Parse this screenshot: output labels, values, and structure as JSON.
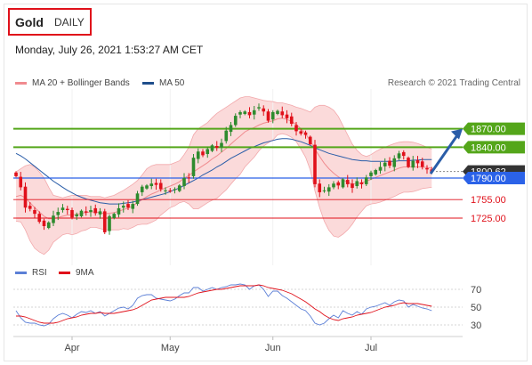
{
  "header": {
    "symbol": "Gold",
    "period": "DAILY",
    "timestamp": "Monday, July 26, 2021 1:53:27 AM CET"
  },
  "legend": {
    "top": [
      {
        "label": "MA 20 + Bollinger Bands",
        "color": "#f08b8f"
      },
      {
        "label": "MA 50",
        "color": "#1f4e8c"
      }
    ],
    "bottom": [
      {
        "label": "RSI",
        "color": "#5b7fd6"
      },
      {
        "label": "9MA",
        "color": "#e0101a"
      }
    ]
  },
  "credit": "Research © 2021 Trading Central",
  "colors": {
    "up": "#2e8b2e",
    "down": "#e0101a",
    "green_level": "#54a61a",
    "blue_level": "#2b62e8",
    "red_level": "#e0101a",
    "price_tag": "#333333",
    "arrow": "#2a5da8",
    "band_fill": "#fbdada"
  },
  "chart_data": [
    {
      "type": "candlestick",
      "x_tick_labels": [
        "Apr",
        "May",
        "Jun",
        "Jul"
      ],
      "x_tick_index": [
        12,
        33,
        55,
        76
      ],
      "y_range": [
        1660,
        1920
      ],
      "levels": [
        {
          "value": 1870.0,
          "label": "1870.00",
          "role": "resistance",
          "color": "green"
        },
        {
          "value": 1840.0,
          "label": "1840.00",
          "role": "resistance",
          "color": "green"
        },
        {
          "value": 1800.62,
          "label": "1800.62",
          "role": "last price",
          "color": "dark"
        },
        {
          "value": 1790.0,
          "label": "1790.00",
          "role": "pivot",
          "color": "blue"
        },
        {
          "value": 1755.0,
          "label": "1755.00",
          "role": "support",
          "color": "red"
        },
        {
          "value": 1725.0,
          "label": "1725.00",
          "role": "support",
          "color": "red"
        }
      ],
      "arrow": {
        "from_value": 1797,
        "to_value": 1870,
        "direction": "up"
      },
      "close": [
        1793,
        1775,
        1742,
        1740,
        1732,
        1719,
        1712,
        1718,
        1729,
        1735,
        1742,
        1738,
        1726,
        1731,
        1737,
        1734,
        1738,
        1733,
        1736,
        1702,
        1728,
        1732,
        1741,
        1745,
        1742,
        1748,
        1765,
        1776,
        1778,
        1781,
        1779,
        1772,
        1770,
        1769,
        1772,
        1778,
        1790,
        1790,
        1823,
        1833,
        1827,
        1837,
        1843,
        1839,
        1847,
        1867,
        1876,
        1891,
        1897,
        1898,
        1892,
        1900,
        1905,
        1898,
        1883,
        1897,
        1899,
        1892,
        1887,
        1878,
        1866,
        1862,
        1860,
        1845,
        1780,
        1767,
        1770,
        1775,
        1781,
        1778,
        1788,
        1780,
        1774,
        1785,
        1780,
        1791,
        1799,
        1803,
        1808,
        1815,
        1810,
        1822,
        1830,
        1826,
        1808,
        1818,
        1814,
        1808,
        1804,
        1800
      ],
      "ma20": [
        1760,
        1762,
        1758,
        1750,
        1742,
        1735,
        1728,
        1724,
        1724,
        1726,
        1728,
        1730,
        1730,
        1731,
        1733,
        1734,
        1735,
        1735,
        1734,
        1732,
        1733,
        1734,
        1736,
        1739,
        1741,
        1745,
        1750,
        1755,
        1760,
        1764,
        1767,
        1771,
        1774,
        1777,
        1780,
        1784,
        1790,
        1794,
        1800,
        1805,
        1810,
        1815,
        1821,
        1826,
        1832,
        1838,
        1845,
        1852,
        1858,
        1865,
        1869,
        1872,
        1876,
        1879,
        1881,
        1883,
        1886,
        1887,
        1885,
        1882,
        1877,
        1870,
        1862,
        1850,
        1837,
        1825,
        1814,
        1805,
        1798,
        1792,
        1787,
        1783,
        1780,
        1781,
        1782,
        1785,
        1788,
        1791,
        1794,
        1797,
        1800,
        1803,
        1806,
        1808,
        1808,
        1808,
        1808,
        1808,
        1807,
        1806
      ],
      "ma50": [
        1830,
        1826,
        1821,
        1815,
        1809,
        1803,
        1797,
        1791,
        1785,
        1780,
        1775,
        1770,
        1766,
        1762,
        1759,
        1756,
        1754,
        1752,
        1750,
        1749,
        1748,
        1748,
        1748,
        1749,
        1750,
        1751,
        1753,
        1755,
        1757,
        1759,
        1761,
        1763,
        1765,
        1768,
        1771,
        1774,
        1778,
        1782,
        1786,
        1790,
        1795,
        1799,
        1803,
        1808,
        1812,
        1817,
        1822,
        1826,
        1830,
        1834,
        1838,
        1841,
        1844,
        1847,
        1849,
        1851,
        1853,
        1854,
        1854,
        1853,
        1851,
        1849,
        1846,
        1843,
        1839,
        1836,
        1833,
        1830,
        1828,
        1826,
        1824,
        1822,
        1820,
        1819,
        1818,
        1818,
        1817,
        1817,
        1817,
        1817,
        1817,
        1817,
        1818,
        1818,
        1818,
        1819,
        1819,
        1820,
        1820,
        1820
      ],
      "bb_upper": [
        1800,
        1805,
        1810,
        1812,
        1808,
        1800,
        1790,
        1775,
        1762,
        1760,
        1758,
        1760,
        1762,
        1762,
        1762,
        1762,
        1760,
        1760,
        1760,
        1758,
        1760,
        1762,
        1766,
        1770,
        1775,
        1780,
        1786,
        1795,
        1805,
        1810,
        1812,
        1812,
        1812,
        1812,
        1815,
        1818,
        1828,
        1840,
        1860,
        1870,
        1875,
        1880,
        1888,
        1895,
        1900,
        1905,
        1910,
        1915,
        1920,
        1922,
        1922,
        1920,
        1918,
        1916,
        1915,
        1914,
        1912,
        1912,
        1910,
        1908,
        1905,
        1903,
        1900,
        1897,
        1905,
        1908,
        1908,
        1905,
        1900,
        1890,
        1875,
        1860,
        1845,
        1835,
        1828,
        1825,
        1828,
        1833,
        1837,
        1840,
        1843,
        1846,
        1848,
        1849,
        1849,
        1848,
        1846,
        1843,
        1840,
        1837
      ],
      "bb_lower": [
        1720,
        1719,
        1706,
        1688,
        1676,
        1670,
        1666,
        1673,
        1686,
        1692,
        1698,
        1700,
        1698,
        1700,
        1704,
        1706,
        1710,
        1710,
        1708,
        1706,
        1706,
        1706,
        1706,
        1708,
        1707,
        1710,
        1714,
        1715,
        1715,
        1718,
        1722,
        1730,
        1736,
        1742,
        1745,
        1750,
        1752,
        1748,
        1740,
        1740,
        1745,
        1750,
        1754,
        1757,
        1764,
        1771,
        1780,
        1789,
        1796,
        1808,
        1816,
        1824,
        1834,
        1842,
        1847,
        1852,
        1860,
        1862,
        1860,
        1856,
        1849,
        1837,
        1824,
        1803,
        1769,
        1742,
        1720,
        1705,
        1696,
        1694,
        1699,
        1706,
        1715,
        1727,
        1736,
        1745,
        1748,
        1749,
        1751,
        1754,
        1757,
        1760,
        1764,
        1767,
        1767,
        1768,
        1770,
        1773,
        1774,
        1775
      ]
    },
    {
      "type": "line",
      "name": "RSI",
      "y_tick_labels": [
        "70",
        "50",
        "30"
      ],
      "y_range": [
        20,
        80
      ],
      "rsi": [
        46,
        38,
        33,
        32,
        32,
        30,
        29,
        31,
        37,
        41,
        43,
        41,
        38,
        42,
        45,
        44,
        46,
        43,
        45,
        40,
        43,
        46,
        49,
        50,
        48,
        52,
        60,
        63,
        64,
        64,
        60,
        59,
        58,
        57,
        59,
        63,
        66,
        66,
        72,
        72,
        68,
        70,
        72,
        70,
        72,
        73,
        75,
        75,
        76,
        75,
        70,
        74,
        75,
        70,
        62,
        68,
        68,
        63,
        60,
        56,
        52,
        48,
        46,
        40,
        32,
        30,
        32,
        37,
        41,
        38,
        46,
        43,
        41,
        45,
        42,
        48,
        50,
        51,
        53,
        55,
        52,
        56,
        58,
        57,
        50,
        53,
        51,
        49,
        48,
        46
      ],
      "rsi_9ma": [
        40,
        40,
        39,
        37,
        35,
        33,
        32,
        32,
        32,
        33,
        35,
        37,
        38,
        39,
        41,
        42,
        43,
        43,
        44,
        43,
        43,
        43,
        44,
        45,
        46,
        47,
        49,
        52,
        55,
        58,
        59,
        60,
        61,
        61,
        61,
        61,
        61,
        62,
        64,
        66,
        67,
        68,
        69,
        70,
        70,
        71,
        72,
        73,
        74,
        74,
        74,
        74,
        75,
        74,
        72,
        71,
        70,
        69,
        67,
        65,
        62,
        59,
        56,
        52,
        48,
        45,
        41,
        38,
        36,
        35,
        37,
        38,
        39,
        41,
        42,
        43,
        44,
        46,
        48,
        50,
        51,
        52,
        54,
        55,
        54,
        54,
        54,
        53,
        52,
        51
      ]
    }
  ]
}
